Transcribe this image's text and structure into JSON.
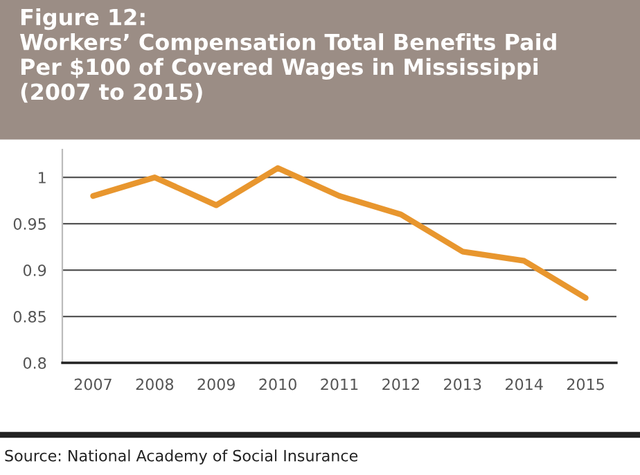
{
  "chart_data": {
    "type": "line",
    "title": "Figure 12:\nWorkers’ Compensation Total Benefits Paid\nPer $100 of Covered Wages in Mississippi\n(2007 to 2015)",
    "categories": [
      "2007",
      "2008",
      "2009",
      "2010",
      "2011",
      "2012",
      "2013",
      "2014",
      "2015"
    ],
    "series": [
      {
        "color": "#e8962e",
        "values": [
          0.98,
          1.0,
          0.97,
          1.01,
          0.98,
          0.96,
          0.92,
          0.91,
          0.87
        ]
      }
    ],
    "ylim": [
      0.8,
      1.03
    ],
    "yticks": [
      0.8,
      0.85,
      0.9,
      0.95,
      1
    ],
    "grid": "y",
    "legend": false,
    "marker": "none",
    "line_style": "solid",
    "annotations": [
      "Source: National Academy of Social Insurance"
    ]
  }
}
